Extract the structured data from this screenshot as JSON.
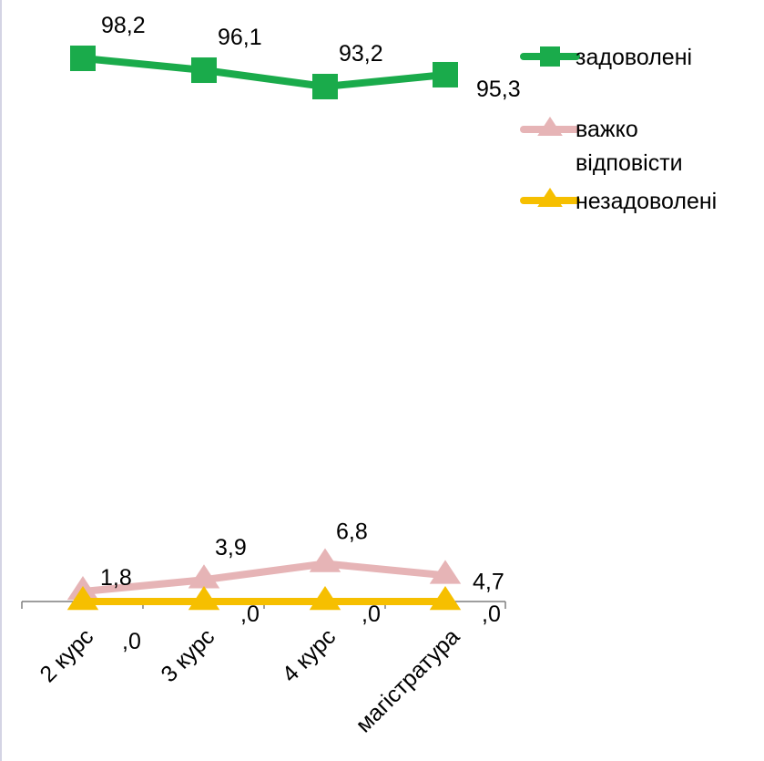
{
  "chart_data": {
    "type": "line",
    "categories": [
      "2 курс",
      "3 курс",
      "4 курс",
      "магістратура"
    ],
    "series": [
      {
        "name": "задоволені",
        "values": [
          98.2,
          96.1,
          93.2,
          95.3
        ],
        "labels": [
          "98,2",
          "96,1",
          "93,2",
          "95,3"
        ],
        "color": "#1aab4b",
        "marker": "square"
      },
      {
        "name": "важко відповісти",
        "values": [
          1.8,
          3.9,
          6.8,
          4.7
        ],
        "labels": [
          "1,8",
          "3,9",
          "6,8",
          "4,7"
        ],
        "color": "#e6b4b6",
        "marker": "triangle"
      },
      {
        "name": "незадоволені",
        "values": [
          0,
          0,
          0,
          0
        ],
        "labels": [
          ",0",
          ",0",
          ",0",
          ",0"
        ],
        "color": "#f6bf00",
        "marker": "triangle"
      }
    ],
    "legend": {
      "placement": "right",
      "items": [
        "задоволені",
        "важко відповісти",
        "незадоволені"
      ]
    },
    "title": "",
    "xlabel": "",
    "ylabel": "",
    "grid": false
  }
}
